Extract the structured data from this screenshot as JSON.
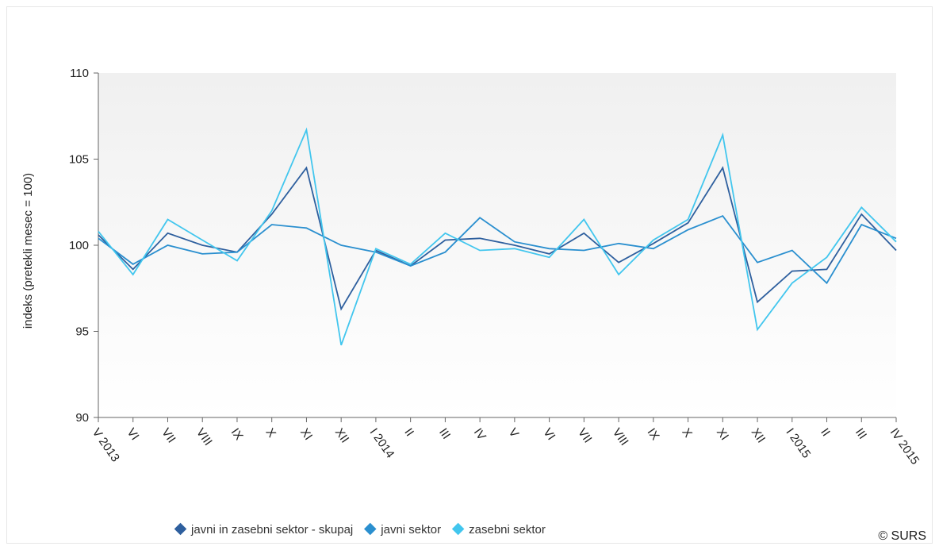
{
  "chart_data": {
    "type": "line",
    "title": "",
    "xlabel": "",
    "ylabel": "indeks (pretekli mesec = 100)",
    "ylim": [
      90,
      110
    ],
    "yticks": [
      "90",
      "95",
      "100",
      "105",
      "110"
    ],
    "grid": false,
    "legend_position": "bottom",
    "categories": [
      "V 2013",
      "VI",
      "VII",
      "VIII",
      "IX",
      "X",
      "XI",
      "XII",
      "I 2014",
      "II",
      "III",
      "IV",
      "V",
      "VI",
      "VII",
      "VIII",
      "IX",
      "X",
      "XI",
      "XII",
      "I 2015",
      "II",
      "III",
      "IV 2015"
    ],
    "series": [
      {
        "name": "javni in zasebni sektor - skupaj",
        "color": "#2e5f9e",
        "values": [
          100.6,
          98.6,
          100.7,
          100.0,
          99.6,
          101.8,
          104.5,
          96.3,
          99.7,
          98.8,
          100.3,
          100.4,
          100.0,
          99.5,
          100.7,
          99.0,
          100.1,
          101.3,
          104.5,
          96.7,
          98.5,
          98.6,
          101.8,
          99.7
        ]
      },
      {
        "name": "javni sektor",
        "color": "#2a8fcf",
        "values": [
          100.4,
          98.9,
          100.0,
          99.5,
          99.6,
          101.2,
          101.0,
          100.0,
          99.6,
          98.8,
          99.6,
          101.6,
          100.2,
          99.8,
          99.7,
          100.1,
          99.8,
          100.9,
          101.7,
          99.0,
          99.7,
          97.8,
          101.2,
          100.4
        ]
      },
      {
        "name": "zasebni sektor",
        "color": "#42c6ee",
        "values": [
          100.8,
          98.3,
          101.5,
          100.3,
          99.1,
          102.0,
          106.7,
          94.2,
          99.8,
          98.9,
          100.7,
          99.7,
          99.8,
          99.3,
          101.5,
          98.3,
          100.3,
          101.5,
          106.4,
          95.1,
          97.8,
          99.3,
          102.2,
          100.2
        ]
      }
    ]
  },
  "credit": "© SURS"
}
